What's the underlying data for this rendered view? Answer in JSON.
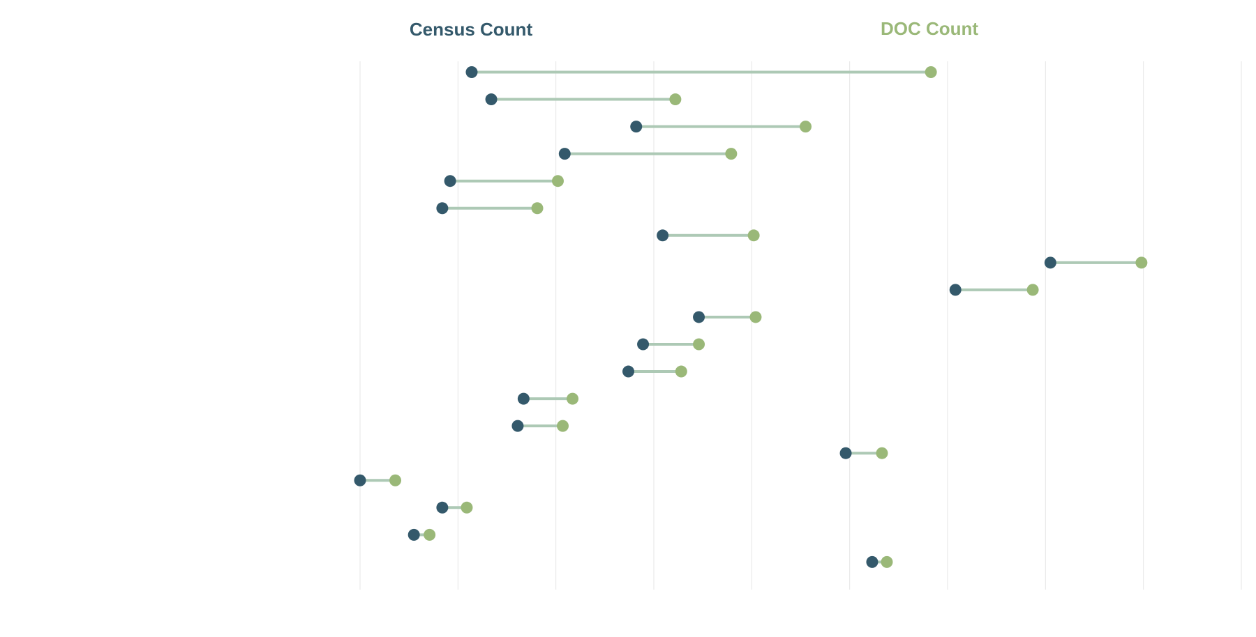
{
  "chart_data": {
    "type": "dumbbell",
    "legend": [
      {
        "name": "Census Count",
        "color": "#34596b"
      },
      {
        "name": "DOC Count",
        "color": "#9ab878"
      }
    ],
    "connector_color": "#adc9b5",
    "x_ticks": [
      0,
      1,
      2,
      3,
      4,
      5,
      6,
      7,
      8,
      9
    ],
    "xlim": [
      0,
      9
    ],
    "grid": true,
    "rows": [
      {
        "census": 1.14,
        "doc": 5.83
      },
      {
        "census": 1.34,
        "doc": 3.22
      },
      {
        "census": 2.82,
        "doc": 4.55
      },
      {
        "census": 2.09,
        "doc": 3.79
      },
      {
        "census": 0.92,
        "doc": 2.02
      },
      {
        "census": 0.84,
        "doc": 1.81
      },
      {
        "census": 3.09,
        "doc": 4.02
      },
      {
        "census": 7.05,
        "doc": 7.98
      },
      {
        "census": 6.08,
        "doc": 6.87
      },
      {
        "census": 3.46,
        "doc": 4.04
      },
      {
        "census": 2.89,
        "doc": 3.46
      },
      {
        "census": 2.74,
        "doc": 3.28
      },
      {
        "census": 1.67,
        "doc": 2.17
      },
      {
        "census": 1.61,
        "doc": 2.07
      },
      {
        "census": 4.96,
        "doc": 5.33
      },
      {
        "census": 0.0,
        "doc": 0.36
      },
      {
        "census": 0.84,
        "doc": 1.09
      },
      {
        "census": 0.55,
        "doc": 0.71
      },
      {
        "census": 5.23,
        "doc": 5.38
      }
    ]
  }
}
